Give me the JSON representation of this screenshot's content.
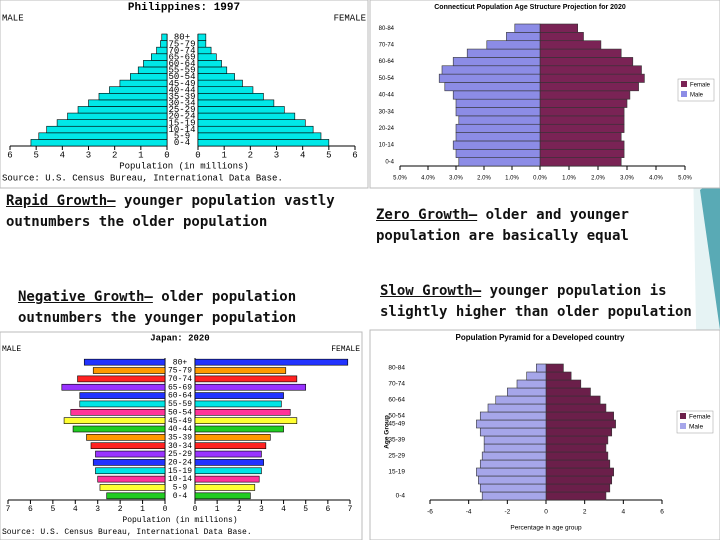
{
  "chart_data": [
    {
      "type": "pyramid",
      "title": "Philippines: 1997",
      "mirrored": true,
      "gap": true,
      "legend": "corners",
      "categories": [
        "0-4",
        "5-9",
        "10-14",
        "15-19",
        "20-24",
        "25-29",
        "30-34",
        "35-39",
        "40-44",
        "45-49",
        "50-54",
        "55-59",
        "60-64",
        "65-69",
        "70-74",
        "75-79",
        "80+"
      ],
      "series": [
        {
          "name": "MALE",
          "side": "left",
          "color": "#00e8e8",
          "values": [
            5.2,
            4.9,
            4.6,
            4.2,
            3.8,
            3.4,
            3.0,
            2.6,
            2.2,
            1.8,
            1.4,
            1.1,
            0.9,
            0.6,
            0.4,
            0.25,
            0.2
          ]
        },
        {
          "name": "FEMALE",
          "side": "right",
          "color": "#00e8e8",
          "values": [
            5.0,
            4.7,
            4.4,
            4.1,
            3.7,
            3.3,
            2.9,
            2.5,
            2.1,
            1.7,
            1.4,
            1.1,
            0.9,
            0.7,
            0.5,
            0.3,
            0.3
          ]
        }
      ],
      "xlim": [
        0,
        6
      ],
      "xticks": [
        0,
        1,
        2,
        3,
        4,
        5,
        6
      ],
      "xlabel": "Population (in millions)",
      "source": "Source: U.S. Census Bureau, International Data Base."
    },
    {
      "type": "pyramid",
      "title": "Connecticut Population Age Structure Projection for 2020",
      "mirrored": true,
      "gap": false,
      "legend": "right",
      "categories": [
        "0-4",
        null,
        "10-14",
        null,
        "20-24",
        null,
        "30-34",
        null,
        "40-44",
        null,
        "50-54",
        null,
        "60-64",
        null,
        "70-74",
        null,
        "80-84"
      ],
      "series": [
        {
          "name": "Female",
          "side": "right",
          "color": "#7a2355",
          "values": [
            2.8,
            2.9,
            2.9,
            2.8,
            2.9,
            2.9,
            2.9,
            3.0,
            3.1,
            3.4,
            3.6,
            3.5,
            3.2,
            2.8,
            2.1,
            1.5,
            1.3
          ]
        },
        {
          "name": "Male",
          "side": "left",
          "color": "#8c8ce6",
          "values": [
            2.9,
            3.0,
            3.1,
            3.0,
            3.0,
            2.9,
            3.0,
            3.0,
            3.1,
            3.4,
            3.6,
            3.5,
            3.1,
            2.6,
            1.9,
            1.2,
            0.9
          ]
        }
      ],
      "xlim": [
        0,
        5
      ],
      "xticks": [
        {
          "value": 0,
          "label": "0.0%"
        },
        {
          "value": 1,
          "label": "1.0%"
        },
        {
          "value": 2,
          "label": "2.0%"
        },
        {
          "value": 3,
          "label": "3.0%"
        },
        {
          "value": 4,
          "label": "4.0%"
        },
        {
          "value": 5,
          "label": "5.0%"
        }
      ]
    },
    {
      "type": "pyramid",
      "title": "Japan: 2020",
      "mirrored": true,
      "gap": true,
      "legend": "corners",
      "categories": [
        "0-4",
        "5-9",
        "10-14",
        "15-19",
        "20-24",
        "25-29",
        "30-34",
        "35-39",
        "40-44",
        "45-49",
        "50-54",
        "55-59",
        "60-64",
        "65-69",
        "70-74",
        "75-79",
        "80+"
      ],
      "colors": [
        "#22cc22",
        "#ffff33",
        "#ff3399",
        "#00e5e5",
        "#2233ff",
        "#9933ff",
        "#ff2222",
        "#ff9900",
        "#22cc22",
        "#ffff33",
        "#ff3399",
        "#00e5e5",
        "#2233ff",
        "#9933ff",
        "#ff2222",
        "#ff9900",
        "#2233ff"
      ],
      "series": [
        {
          "name": "MALE",
          "side": "left",
          "color": "#2233ff",
          "values": [
            2.6,
            2.9,
            3.0,
            3.1,
            3.2,
            3.1,
            3.3,
            3.5,
            4.1,
            4.5,
            4.2,
            3.8,
            3.8,
            4.6,
            3.9,
            3.2,
            3.6
          ]
        },
        {
          "name": "FEMALE",
          "side": "right",
          "color": "#2233ff",
          "values": [
            2.5,
            2.7,
            2.9,
            3.0,
            3.1,
            3.0,
            3.2,
            3.4,
            4.0,
            4.6,
            4.3,
            3.9,
            4.0,
            5.0,
            4.6,
            4.1,
            6.9
          ]
        }
      ],
      "xlim": [
        0,
        7
      ],
      "xticks": [
        0,
        1,
        2,
        3,
        4,
        5,
        6,
        7
      ],
      "xlabel": "Population (in millions)",
      "source": "Source: U.S. Census Bureau, International Data Base."
    },
    {
      "type": "pyramid",
      "title": "Population Pyramid for a Developed country",
      "mirrored": false,
      "legend": "right",
      "ylabel": "Age Group",
      "categories": [
        "0-4",
        null,
        null,
        "15-19",
        null,
        "25-29",
        null,
        "35-39",
        null,
        "45-49",
        "50-54",
        null,
        "60-64",
        null,
        "70-74",
        null,
        "80-84"
      ],
      "series": [
        {
          "name": "Female",
          "side": "right",
          "color": "#6b1f4a",
          "values": [
            3.1,
            3.3,
            3.4,
            3.5,
            3.3,
            3.2,
            3.1,
            3.2,
            3.4,
            3.6,
            3.5,
            3.1,
            2.8,
            2.3,
            1.8,
            1.3,
            0.9
          ]
        },
        {
          "name": "Male",
          "side": "left",
          "color": "#a6a6ea",
          "values": [
            -3.3,
            -3.4,
            -3.5,
            -3.6,
            -3.4,
            -3.3,
            -3.2,
            -3.2,
            -3.4,
            -3.6,
            -3.4,
            -3.0,
            -2.6,
            -2.0,
            -1.5,
            -1.0,
            -0.5
          ]
        }
      ],
      "xlim": [
        -6,
        6
      ],
      "xticks": [
        -6,
        -4,
        -2,
        0,
        2,
        4,
        6
      ],
      "xlabel": "Percentage in age group"
    }
  ],
  "captions": [
    {
      "heading": "Rapid Growth–",
      "text": "younger population vastly outnumbers the older population"
    },
    {
      "heading": "Zero Growth–",
      "text": "older and younger population are basically equal"
    },
    {
      "heading": "Negative Growth–",
      "text": "older population outnumbers the younger population"
    },
    {
      "heading": "Slow Growth–",
      "text": "younger population is slightly higher than older population"
    }
  ]
}
